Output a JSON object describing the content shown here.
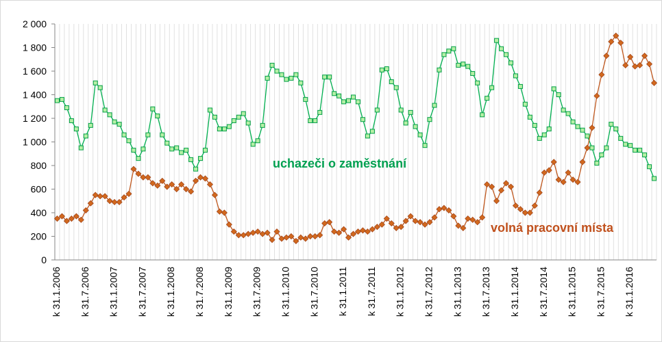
{
  "chart_data": {
    "type": "line",
    "title": "",
    "xlabel": "",
    "ylabel": "",
    "ylim": [
      0,
      2000
    ],
    "y_ticks": [
      "0",
      "200",
      "400",
      "600",
      "800",
      "1 000",
      "1 200",
      "1 400",
      "1 600",
      "1 800",
      "2 000"
    ],
    "x_tick_labels": [
      "k 31.1.2006",
      "k 31.7.2006",
      "k 31.1.2007",
      "k 31.7.2007",
      "k 31.1.2008",
      "k 31.7.2008",
      "k 31.1.2009",
      "k 31.7.2009",
      "k 31.1.2010",
      "k 31.7.2010",
      "k 31.1.2011",
      "k 31.7.2011",
      "k 31.1.2012",
      "k 31.7.2012",
      "k 31.1.2013",
      "k 31.7.2013",
      "k 31.1.2014",
      "k 31.7.2014",
      "k 31.1.2015",
      "k 31.7.2015",
      "k 31.1.2016"
    ],
    "grid": "vertical",
    "series": [
      {
        "name": "uchazeči o zaměstnání",
        "color": "#00b050",
        "marker": "square",
        "values": [
          1350,
          1360,
          1290,
          1180,
          1110,
          950,
          1050,
          1140,
          1500,
          1460,
          1270,
          1230,
          1170,
          1150,
          1060,
          1010,
          930,
          860,
          940,
          1060,
          1280,
          1220,
          1060,
          990,
          940,
          950,
          910,
          930,
          850,
          770,
          860,
          930,
          1270,
          1210,
          1110,
          1110,
          1130,
          1180,
          1210,
          1240,
          1160,
          980,
          1010,
          1140,
          1540,
          1650,
          1600,
          1570,
          1530,
          1540,
          1570,
          1500,
          1360,
          1180,
          1180,
          1250,
          1550,
          1550,
          1410,
          1390,
          1340,
          1350,
          1380,
          1340,
          1190,
          1050,
          1090,
          1270,
          1610,
          1620,
          1510,
          1460,
          1270,
          1160,
          1250,
          1130,
          1060,
          970,
          1190,
          1310,
          1610,
          1740,
          1770,
          1790,
          1650,
          1660,
          1640,
          1580,
          1500,
          1230,
          1370,
          1460,
          1860,
          1790,
          1740,
          1670,
          1560,
          1470,
          1320,
          1210,
          1140,
          1030,
          1060,
          1110,
          1450,
          1400,
          1270,
          1240,
          1170,
          1130,
          1100,
          1050,
          950,
          820,
          890,
          950,
          1150,
          1110,
          1030,
          980,
          970,
          930,
          930,
          890,
          790,
          690
        ]
      },
      {
        "name": "volná pracovní místa",
        "color": "#c0581e",
        "marker": "diamond",
        "values": [
          350,
          370,
          330,
          350,
          370,
          340,
          420,
          480,
          550,
          540,
          540,
          500,
          490,
          490,
          530,
          560,
          770,
          730,
          700,
          700,
          650,
          630,
          670,
          620,
          640,
          600,
          640,
          600,
          580,
          670,
          700,
          690,
          640,
          550,
          410,
          400,
          300,
          240,
          210,
          210,
          220,
          230,
          240,
          220,
          230,
          170,
          240,
          180,
          190,
          200,
          160,
          190,
          180,
          200,
          200,
          210,
          310,
          320,
          240,
          230,
          260,
          190,
          220,
          240,
          250,
          240,
          260,
          280,
          300,
          350,
          310,
          270,
          280,
          330,
          370,
          330,
          320,
          300,
          320,
          360,
          430,
          440,
          420,
          370,
          290,
          270,
          350,
          340,
          320,
          360,
          640,
          620,
          500,
          590,
          650,
          620,
          460,
          430,
          400,
          400,
          460,
          570,
          740,
          760,
          830,
          680,
          660,
          740,
          680,
          660,
          830,
          950,
          1120,
          1390,
          1570,
          1730,
          1850,
          1900,
          1840,
          1650,
          1720,
          1640,
          1650,
          1730,
          1660,
          1500
        ]
      }
    ]
  },
  "annotations": {
    "applicants": "uchazeči o zaměstnání",
    "vacancies": "volná pracovní místa",
    "applicants_color": "#00a050",
    "vacancies_color": "#c0501c"
  }
}
